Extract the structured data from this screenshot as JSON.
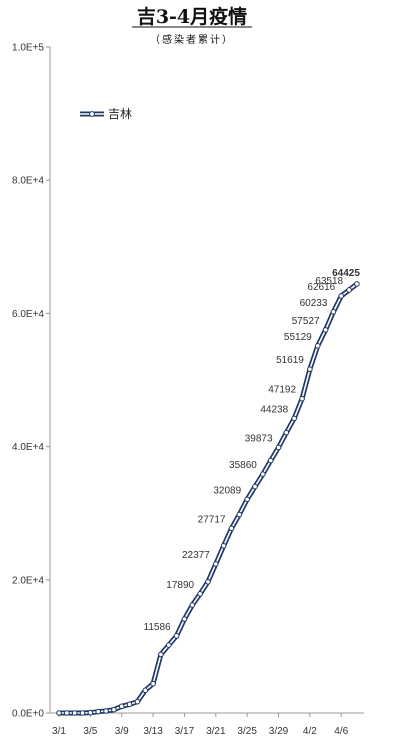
{
  "chart_data": {
    "type": "line",
    "title": "吉3-4月疫情",
    "subtitle": "（感染者累计）",
    "xlabel": "",
    "ylabel": "",
    "ylim": [
      0,
      100000
    ],
    "y_tick_labels": [
      "0.0E+0",
      "2.0E+4",
      "4.0E+4",
      "6.0E+4",
      "8.0E+4",
      "1.0E+5"
    ],
    "y_tick_values": [
      0,
      20000,
      40000,
      60000,
      80000,
      100000
    ],
    "x_tick_labels": [
      "3/1",
      "3/5",
      "3/9",
      "3/13",
      "3/17",
      "3/21",
      "3/25",
      "3/29",
      "4/2",
      "4/6"
    ],
    "x_tick_indices": [
      0,
      4,
      8,
      12,
      16,
      20,
      24,
      28,
      32,
      36
    ],
    "grid": false,
    "legend": "top-left",
    "series": [
      {
        "name": "吉林",
        "color": "#1f3864",
        "values": [
          0,
          0,
          0,
          0,
          50,
          200,
          300,
          500,
          1000,
          1300,
          1700,
          3400,
          4400,
          8800,
          10200,
          11586,
          14100,
          16200,
          17890,
          19700,
          22377,
          25100,
          27717,
          29800,
          32089,
          34000,
          35860,
          37900,
          39873,
          42100,
          44238,
          47192,
          51619,
          55129,
          57527,
          60233,
          62616,
          63518,
          64425
        ]
      }
    ],
    "data_labels": [
      {
        "index": 15,
        "text": "11586"
      },
      {
        "index": 18,
        "text": "17890"
      },
      {
        "index": 20,
        "text": "22377"
      },
      {
        "index": 22,
        "text": "27717"
      },
      {
        "index": 24,
        "text": "32089"
      },
      {
        "index": 26,
        "text": "35860"
      },
      {
        "index": 28,
        "text": "39873"
      },
      {
        "index": 30,
        "text": "44238"
      },
      {
        "index": 31,
        "text": "47192"
      },
      {
        "index": 32,
        "text": "51619"
      },
      {
        "index": 33,
        "text": "55129"
      },
      {
        "index": 34,
        "text": "57527"
      },
      {
        "index": 35,
        "text": "60233"
      },
      {
        "index": 36,
        "text": "62616"
      },
      {
        "index": 37,
        "text": "63518"
      },
      {
        "index": 38,
        "text": "64425",
        "bold": true
      }
    ]
  }
}
